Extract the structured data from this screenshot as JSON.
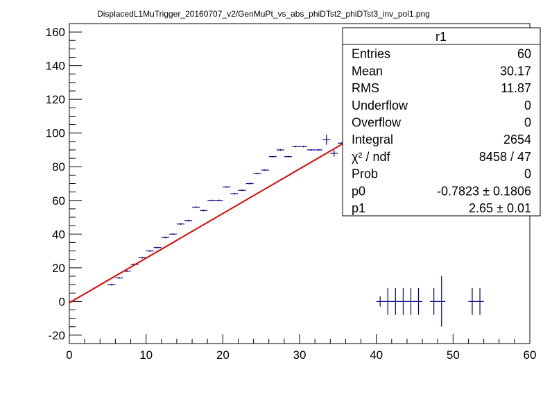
{
  "chart_data": {
    "type": "scatter",
    "title": "DisplacedL1MuTrigger_20160707_v2/GenMuPt_vs_abs_phiDTst2_phiDTst3_inv_pol1.png",
    "xlabel": "",
    "ylabel": "",
    "xlim": [
      0,
      60
    ],
    "ylim": [
      -25,
      165
    ],
    "x_ticks": [
      0,
      10,
      20,
      30,
      40,
      50,
      60
    ],
    "y_ticks": [
      -20,
      0,
      20,
      40,
      60,
      80,
      100,
      120,
      140,
      160
    ],
    "grid": false,
    "colors": {
      "points": "#000080",
      "fit": "#e00000"
    },
    "points": [
      {
        "x": 5.5,
        "y": 10,
        "ey": 0.5
      },
      {
        "x": 6.5,
        "y": 14,
        "ey": 0.5
      },
      {
        "x": 7.5,
        "y": 18,
        "ey": 0.5
      },
      {
        "x": 8.5,
        "y": 22,
        "ey": 0.5
      },
      {
        "x": 9.5,
        "y": 26,
        "ey": 0.5
      },
      {
        "x": 10.5,
        "y": 30,
        "ey": 0.5
      },
      {
        "x": 11.5,
        "y": 32,
        "ey": 0.5
      },
      {
        "x": 12.5,
        "y": 38,
        "ey": 0.5
      },
      {
        "x": 13.5,
        "y": 40,
        "ey": 0.5
      },
      {
        "x": 14.5,
        "y": 46,
        "ey": 0.5
      },
      {
        "x": 15.5,
        "y": 48,
        "ey": 0.5
      },
      {
        "x": 16.5,
        "y": 56,
        "ey": 0.5
      },
      {
        "x": 17.5,
        "y": 54,
        "ey": 0.5
      },
      {
        "x": 18.5,
        "y": 60,
        "ey": 0.5
      },
      {
        "x": 19.5,
        "y": 60,
        "ey": 0.5
      },
      {
        "x": 20.5,
        "y": 68,
        "ey": 0.5
      },
      {
        "x": 21.5,
        "y": 64,
        "ey": 0.5
      },
      {
        "x": 22.5,
        "y": 66,
        "ey": 0.5
      },
      {
        "x": 23.5,
        "y": 70,
        "ey": 0.5
      },
      {
        "x": 24.5,
        "y": 76,
        "ey": 0.5
      },
      {
        "x": 25.5,
        "y": 78,
        "ey": 0.5
      },
      {
        "x": 26.5,
        "y": 86,
        "ey": 0.5
      },
      {
        "x": 27.5,
        "y": 90,
        "ey": 0.5
      },
      {
        "x": 28.5,
        "y": 86,
        "ey": 0.5
      },
      {
        "x": 29.5,
        "y": 92,
        "ey": 0.5
      },
      {
        "x": 30.5,
        "y": 92,
        "ey": 0.5
      },
      {
        "x": 31.5,
        "y": 90,
        "ey": 0.5
      },
      {
        "x": 32.5,
        "y": 90,
        "ey": 0.5
      },
      {
        "x": 33.5,
        "y": 96,
        "ey": 3
      },
      {
        "x": 34.5,
        "y": 88,
        "ey": 2
      },
      {
        "x": 35.5,
        "y": 94,
        "ey": 0.5
      },
      {
        "x": 36.5,
        "y": 97,
        "ey": 2
      },
      {
        "x": 38.5,
        "y": 104,
        "ey": 4
      },
      {
        "x": 39.5,
        "y": 117,
        "ey": 6
      },
      {
        "x": 43.5,
        "y": 97,
        "ey": 8
      },
      {
        "x": 46.5,
        "y": 96,
        "ey": 8
      },
      {
        "x": 49.5,
        "y": 76,
        "ey": 5
      },
      {
        "x": 56.5,
        "y": 86,
        "ey": 7
      },
      {
        "x": 40.5,
        "y": 0,
        "ey": 3
      },
      {
        "x": 41.5,
        "y": 0,
        "ey": 8
      },
      {
        "x": 42.5,
        "y": 0,
        "ey": 8
      },
      {
        "x": 43.5,
        "y": 0,
        "ey": 8
      },
      {
        "x": 44.5,
        "y": 0,
        "ey": 8
      },
      {
        "x": 45.5,
        "y": 0,
        "ey": 8
      },
      {
        "x": 47.5,
        "y": 0,
        "ey": 8
      },
      {
        "x": 48.5,
        "y": 0,
        "ey": 15
      },
      {
        "x": 52.5,
        "y": 0,
        "ey": 8
      },
      {
        "x": 53.5,
        "y": 0,
        "ey": 8
      }
    ],
    "fit": {
      "p0": -0.7823,
      "p1": 2.65,
      "x_range": [
        0,
        60
      ]
    }
  },
  "stats": {
    "name": "r1",
    "rows": [
      {
        "label": "Entries",
        "value": "60"
      },
      {
        "label": "Mean",
        "value": "30.17"
      },
      {
        "label": "RMS",
        "value": "11.87"
      },
      {
        "label": "Underflow",
        "value": "0"
      },
      {
        "label": "Overflow",
        "value": "0"
      },
      {
        "label": "Integral",
        "value": "2654"
      },
      {
        "label": "χ² / ndf",
        "value": "8458 / 47"
      },
      {
        "label": "Prob",
        "value": "0"
      },
      {
        "label": "p0",
        "value": "-0.7823 ± 0.1806"
      },
      {
        "label": "p1",
        "value": "2.65 ± 0.01"
      }
    ]
  }
}
